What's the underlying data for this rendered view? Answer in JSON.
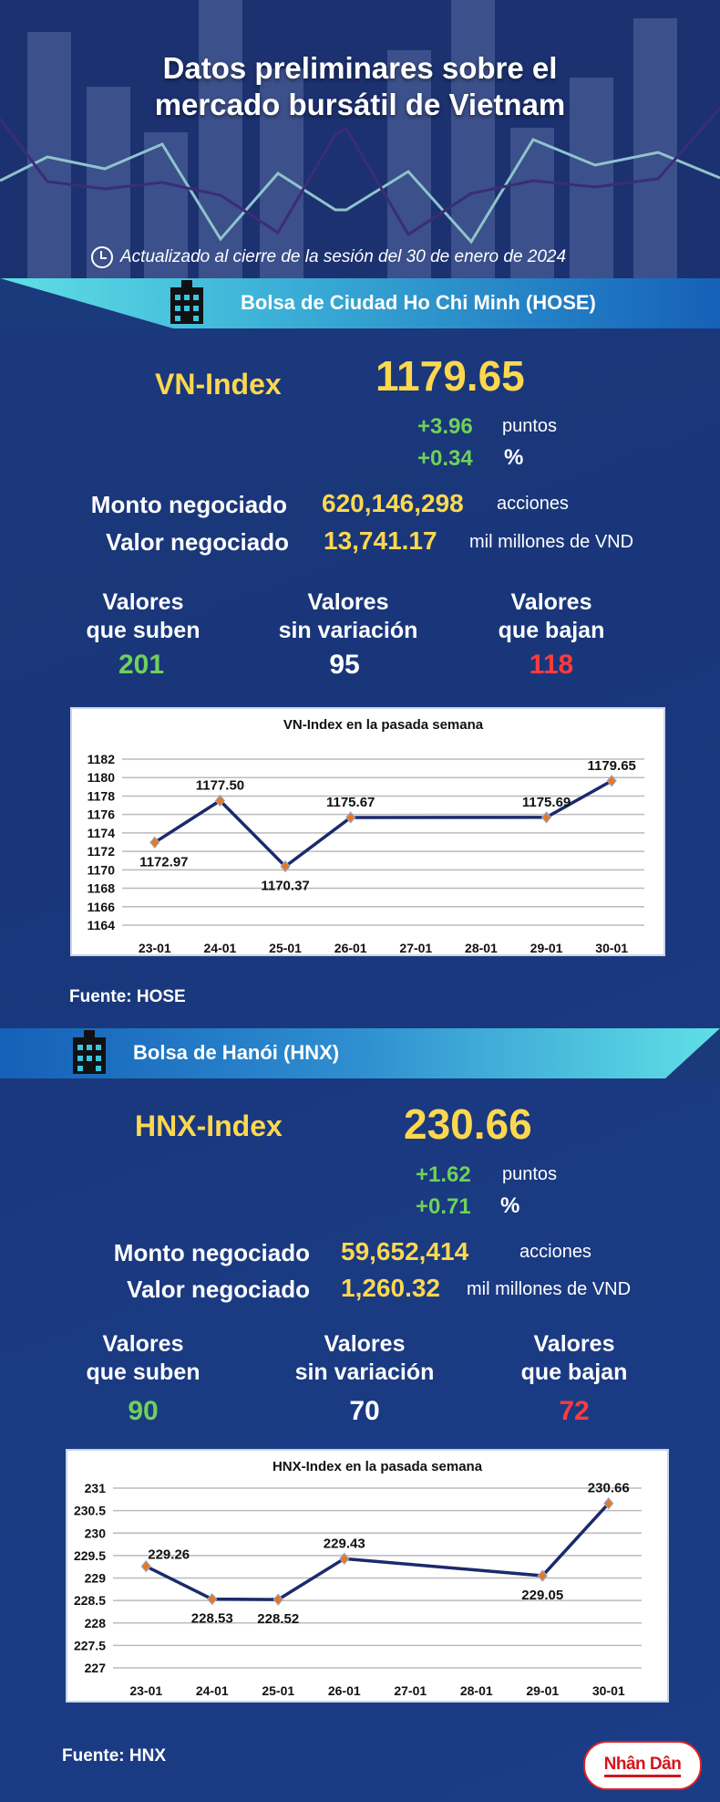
{
  "header": {
    "title_line1": "Datos preliminares sobre el",
    "title_line2": "mercado bursátil de Vietnam",
    "updated": "Actualizado al cierre de la sesión del 30 de enero de 2024"
  },
  "colors": {
    "yellow": "#fdd84f",
    "green": "#6ed15a",
    "red": "#ff3b3b",
    "line": "#1b2a6b",
    "marker": "#e87722"
  },
  "hose": {
    "banner": "Bolsa de Ciudad Ho Chi Minh (HOSE)",
    "index_label": "VN-Index",
    "index_value": "1179.65",
    "change_points": "+3.96",
    "points_unit": "puntos",
    "change_pct": "+0.34",
    "pct_unit": "%",
    "volume_label": "Monto negociado",
    "volume": "620,146,298",
    "volume_unit": "acciones",
    "value_label": "Valor negociado",
    "value": "13,741.17",
    "value_unit": "mil millones de VND",
    "up_label1": "Valores",
    "up_label2": "que suben",
    "up": "201",
    "flat_label1": "Valores",
    "flat_label2": "sin variación",
    "flat": "95",
    "down_label1": "Valores",
    "down_label2": "que bajan",
    "down": "118",
    "source": "Fuente: HOSE"
  },
  "hnx": {
    "banner": "Bolsa de Hanói (HNX)",
    "index_label": "HNX-Index",
    "index_value": "230.66",
    "change_points": "+1.62",
    "points_unit": "puntos",
    "change_pct": "+0.71",
    "pct_unit": "%",
    "volume_label": "Monto negociado",
    "volume": "59,652,414",
    "volume_unit": "acciones",
    "value_label": "Valor negociado",
    "value": "1,260.32",
    "value_unit": "mil millones de VND",
    "up_label1": "Valores",
    "up_label2": "que suben",
    "up": "90",
    "flat_label1": "Valores",
    "flat_label2": "sin variación",
    "flat": "70",
    "down_label1": "Valores",
    "down_label2": "que bajan",
    "down": "72",
    "source": "Fuente:  HNX"
  },
  "logo": "Nhân Dân",
  "chart_data": [
    {
      "type": "line",
      "title": "VN-Index en la pasada semana",
      "categories": [
        "23-01",
        "24-01",
        "25-01",
        "26-01",
        "27-01",
        "28-01",
        "29-01",
        "30-01"
      ],
      "values": [
        1172.97,
        1177.5,
        1170.37,
        1175.67,
        null,
        null,
        1175.69,
        1179.65
      ],
      "labels": [
        "1172.97",
        "1177.50",
        "1170.37",
        "1175.67",
        "",
        "",
        "1175.69",
        "1179.65"
      ],
      "label_pos": [
        "below",
        "above",
        "below",
        "above",
        "",
        "",
        "above",
        "above"
      ],
      "ylim": [
        1164,
        1182
      ],
      "yticks": [
        "1164",
        "1166",
        "1168",
        "1170",
        "1172",
        "1174",
        "1176",
        "1178",
        "1180",
        "1182"
      ],
      "grid": true
    },
    {
      "type": "line",
      "title": "HNX-Index en la pasada semana",
      "categories": [
        "23-01",
        "24-01",
        "25-01",
        "26-01",
        "27-01",
        "28-01",
        "29-01",
        "30-01"
      ],
      "values": [
        229.26,
        228.53,
        228.52,
        229.43,
        null,
        null,
        229.05,
        230.66
      ],
      "labels": [
        "229.26",
        "228.53",
        "228.52",
        "229.43",
        "",
        "",
        "229.05",
        "230.66"
      ],
      "label_pos": [
        "right",
        "below",
        "below",
        "above",
        "",
        "",
        "below",
        "above"
      ],
      "ylim": [
        227,
        231
      ],
      "yticks": [
        "227",
        "227.5",
        "228",
        "228.5",
        "229",
        "229.5",
        "230",
        "230.5",
        "231"
      ],
      "grid": true
    }
  ]
}
